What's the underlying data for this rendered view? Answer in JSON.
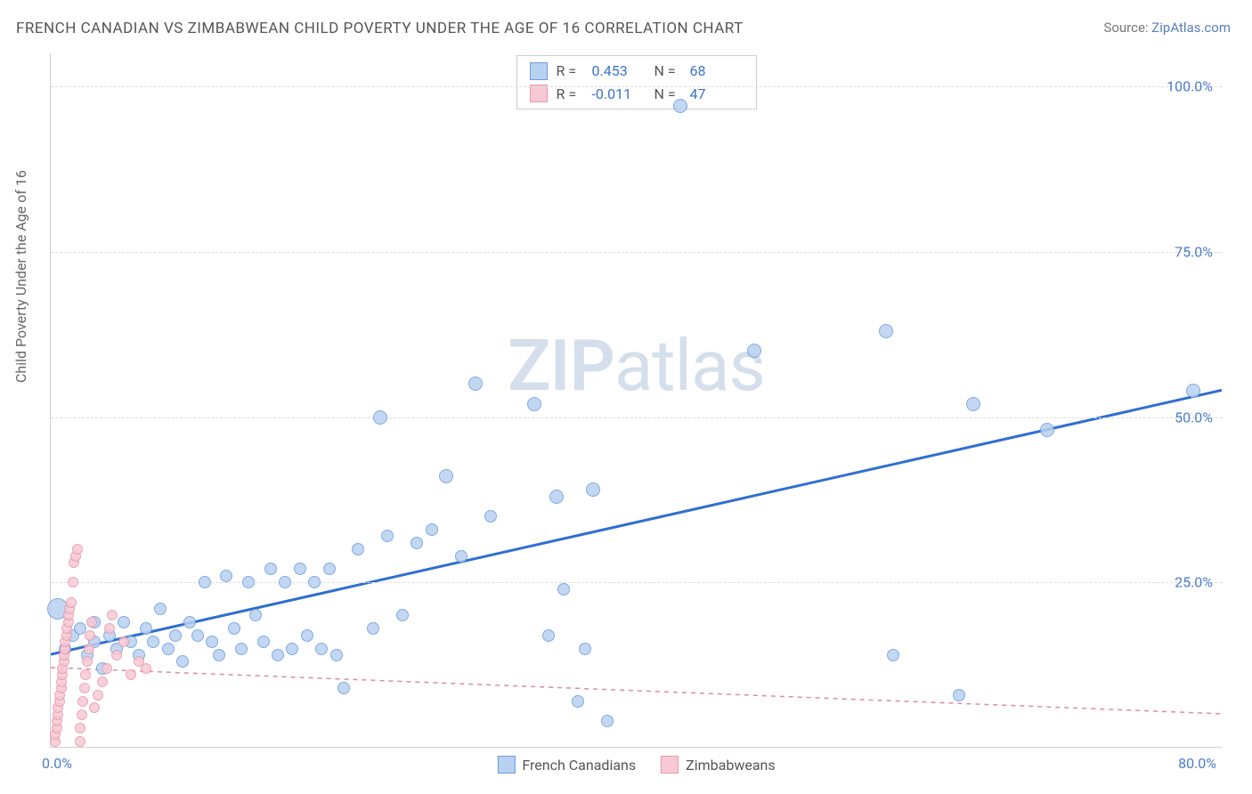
{
  "chart": {
    "title": "FRENCH CANADIAN VS ZIMBABWEAN CHILD POVERTY UNDER THE AGE OF 16 CORRELATION CHART",
    "source_label": "Source:",
    "source_name": "ZipAtlas.com",
    "y_axis_label": "Child Poverty Under the Age of 16",
    "watermark": "ZIPatlas",
    "x_min": 0.0,
    "x_max": 80.0,
    "y_min": 0.0,
    "y_max": 105.0,
    "y_ticks": [
      {
        "value": 25.0,
        "label": "25.0%"
      },
      {
        "value": 50.0,
        "label": "50.0%"
      },
      {
        "value": 75.0,
        "label": "75.0%"
      },
      {
        "value": 100.0,
        "label": "100.0%"
      }
    ],
    "x_tick_left": "0.0%",
    "x_tick_right": "80.0%",
    "grid_color": "#dddddd",
    "axis_color": "#d0d0d0",
    "tick_label_color": "#4a7ccc",
    "background_color": "#ffffff",
    "series": [
      {
        "name": "French Canadians",
        "fill": "#b9d1f0",
        "stroke": "#6a9de0",
        "trend_color": "#2f6fd0",
        "trend_width": 3,
        "trend_dash": "none",
        "R_label": "R =",
        "R_value": "0.453",
        "N_label": "N =",
        "N_value": "68",
        "stat_color": "#3a72c9",
        "trend": {
          "x1": 0,
          "y1": 14.0,
          "x2": 80,
          "y2": 54.0
        },
        "points": [
          {
            "x": 0.5,
            "y": 21,
            "r": 12
          },
          {
            "x": 1.0,
            "y": 15,
            "r": 7
          },
          {
            "x": 1.5,
            "y": 17,
            "r": 7
          },
          {
            "x": 2.0,
            "y": 18,
            "r": 7
          },
          {
            "x": 2.5,
            "y": 14,
            "r": 7
          },
          {
            "x": 3.0,
            "y": 16,
            "r": 7
          },
          {
            "x": 3.0,
            "y": 19,
            "r": 7
          },
          {
            "x": 3.5,
            "y": 12,
            "r": 7
          },
          {
            "x": 4.0,
            "y": 17,
            "r": 7
          },
          {
            "x": 4.5,
            "y": 15,
            "r": 7
          },
          {
            "x": 5.0,
            "y": 19,
            "r": 7
          },
          {
            "x": 5.5,
            "y": 16,
            "r": 7
          },
          {
            "x": 6.0,
            "y": 14,
            "r": 7
          },
          {
            "x": 6.5,
            "y": 18,
            "r": 7
          },
          {
            "x": 7.0,
            "y": 16,
            "r": 7
          },
          {
            "x": 7.5,
            "y": 21,
            "r": 7
          },
          {
            "x": 8.0,
            "y": 15,
            "r": 7
          },
          {
            "x": 8.5,
            "y": 17,
            "r": 7
          },
          {
            "x": 9.0,
            "y": 13,
            "r": 7
          },
          {
            "x": 9.5,
            "y": 19,
            "r": 7
          },
          {
            "x": 10,
            "y": 17,
            "r": 7
          },
          {
            "x": 10.5,
            "y": 25,
            "r": 7
          },
          {
            "x": 11,
            "y": 16,
            "r": 7
          },
          {
            "x": 11.5,
            "y": 14,
            "r": 7
          },
          {
            "x": 12,
            "y": 26,
            "r": 7
          },
          {
            "x": 12.5,
            "y": 18,
            "r": 7
          },
          {
            "x": 13,
            "y": 15,
            "r": 7
          },
          {
            "x": 13.5,
            "y": 25,
            "r": 7
          },
          {
            "x": 14,
            "y": 20,
            "r": 7
          },
          {
            "x": 14.5,
            "y": 16,
            "r": 7
          },
          {
            "x": 15,
            "y": 27,
            "r": 7
          },
          {
            "x": 15.5,
            "y": 14,
            "r": 7
          },
          {
            "x": 16,
            "y": 25,
            "r": 7
          },
          {
            "x": 16.5,
            "y": 15,
            "r": 7
          },
          {
            "x": 17,
            "y": 27,
            "r": 7
          },
          {
            "x": 17.5,
            "y": 17,
            "r": 7
          },
          {
            "x": 18,
            "y": 25,
            "r": 7
          },
          {
            "x": 18.5,
            "y": 15,
            "r": 7
          },
          {
            "x": 19,
            "y": 27,
            "r": 7
          },
          {
            "x": 19.5,
            "y": 14,
            "r": 7
          },
          {
            "x": 20,
            "y": 9,
            "r": 7
          },
          {
            "x": 21,
            "y": 30,
            "r": 7
          },
          {
            "x": 22,
            "y": 18,
            "r": 7
          },
          {
            "x": 22.5,
            "y": 50,
            "r": 8
          },
          {
            "x": 23,
            "y": 32,
            "r": 7
          },
          {
            "x": 24,
            "y": 20,
            "r": 7
          },
          {
            "x": 25,
            "y": 31,
            "r": 7
          },
          {
            "x": 26,
            "y": 33,
            "r": 7
          },
          {
            "x": 27,
            "y": 41,
            "r": 8
          },
          {
            "x": 28,
            "y": 29,
            "r": 7
          },
          {
            "x": 29,
            "y": 55,
            "r": 8
          },
          {
            "x": 30,
            "y": 35,
            "r": 7
          },
          {
            "x": 33,
            "y": 52,
            "r": 8
          },
          {
            "x": 34,
            "y": 17,
            "r": 7
          },
          {
            "x": 34.5,
            "y": 38,
            "r": 8
          },
          {
            "x": 35,
            "y": 24,
            "r": 7
          },
          {
            "x": 36,
            "y": 7,
            "r": 7
          },
          {
            "x": 36.5,
            "y": 15,
            "r": 7
          },
          {
            "x": 37,
            "y": 39,
            "r": 8
          },
          {
            "x": 38,
            "y": 4,
            "r": 7
          },
          {
            "x": 43,
            "y": 97,
            "r": 8
          },
          {
            "x": 48,
            "y": 60,
            "r": 8
          },
          {
            "x": 57,
            "y": 63,
            "r": 8
          },
          {
            "x": 57.5,
            "y": 14,
            "r": 7
          },
          {
            "x": 62,
            "y": 8,
            "r": 7
          },
          {
            "x": 63,
            "y": 52,
            "r": 8
          },
          {
            "x": 68,
            "y": 48,
            "r": 8
          },
          {
            "x": 78,
            "y": 54,
            "r": 8
          }
        ]
      },
      {
        "name": "Zimbabweans",
        "fill": "#f7c9d4",
        "stroke": "#ea98ac",
        "trend_color": "#e08a9e",
        "trend_width": 1.5,
        "trend_dash": "5,5",
        "R_label": "R =",
        "R_value": "-0.011",
        "N_label": "N =",
        "N_value": "47",
        "stat_color": "#3a72c9",
        "trend": {
          "x1": 0,
          "y1": 12.0,
          "x2": 80,
          "y2": 5.0
        },
        "points": [
          {
            "x": 0.3,
            "y": 1,
            "r": 6
          },
          {
            "x": 0.3,
            "y": 2,
            "r": 6
          },
          {
            "x": 0.4,
            "y": 3,
            "r": 6
          },
          {
            "x": 0.4,
            "y": 4,
            "r": 6
          },
          {
            "x": 0.5,
            "y": 5,
            "r": 6
          },
          {
            "x": 0.5,
            "y": 6,
            "r": 6
          },
          {
            "x": 0.6,
            "y": 7,
            "r": 6
          },
          {
            "x": 0.6,
            "y": 8,
            "r": 6
          },
          {
            "x": 0.7,
            "y": 9,
            "r": 6
          },
          {
            "x": 0.7,
            "y": 10,
            "r": 6
          },
          {
            "x": 0.8,
            "y": 11,
            "r": 6
          },
          {
            "x": 0.8,
            "y": 12,
            "r": 6
          },
          {
            "x": 0.9,
            "y": 13,
            "r": 6
          },
          {
            "x": 0.9,
            "y": 14,
            "r": 6
          },
          {
            "x": 1.0,
            "y": 15,
            "r": 6
          },
          {
            "x": 1.0,
            "y": 16,
            "r": 6
          },
          {
            "x": 1.1,
            "y": 17,
            "r": 6
          },
          {
            "x": 1.1,
            "y": 18,
            "r": 6
          },
          {
            "x": 1.2,
            "y": 19,
            "r": 6
          },
          {
            "x": 1.2,
            "y": 20,
            "r": 6
          },
          {
            "x": 1.3,
            "y": 21,
            "r": 6
          },
          {
            "x": 1.4,
            "y": 22,
            "r": 6
          },
          {
            "x": 1.5,
            "y": 25,
            "r": 6
          },
          {
            "x": 1.6,
            "y": 28,
            "r": 6
          },
          {
            "x": 1.7,
            "y": 29,
            "r": 6
          },
          {
            "x": 1.8,
            "y": 30,
            "r": 6
          },
          {
            "x": 2.0,
            "y": 1,
            "r": 6
          },
          {
            "x": 2.0,
            "y": 3,
            "r": 6
          },
          {
            "x": 2.1,
            "y": 5,
            "r": 6
          },
          {
            "x": 2.2,
            "y": 7,
            "r": 6
          },
          {
            "x": 2.3,
            "y": 9,
            "r": 6
          },
          {
            "x": 2.4,
            "y": 11,
            "r": 6
          },
          {
            "x": 2.5,
            "y": 13,
            "r": 6
          },
          {
            "x": 2.6,
            "y": 15,
            "r": 6
          },
          {
            "x": 2.7,
            "y": 17,
            "r": 6
          },
          {
            "x": 2.8,
            "y": 19,
            "r": 6
          },
          {
            "x": 3.0,
            "y": 6,
            "r": 6
          },
          {
            "x": 3.2,
            "y": 8,
            "r": 6
          },
          {
            "x": 3.5,
            "y": 10,
            "r": 6
          },
          {
            "x": 3.8,
            "y": 12,
            "r": 6
          },
          {
            "x": 4.0,
            "y": 18,
            "r": 6
          },
          {
            "x": 4.2,
            "y": 20,
            "r": 6
          },
          {
            "x": 4.5,
            "y": 14,
            "r": 6
          },
          {
            "x": 5.0,
            "y": 16,
            "r": 6
          },
          {
            "x": 5.5,
            "y": 11,
            "r": 6
          },
          {
            "x": 6.0,
            "y": 13,
            "r": 6
          },
          {
            "x": 6.5,
            "y": 12,
            "r": 6
          }
        ]
      }
    ],
    "bottom_legend": [
      {
        "label": "French Canadians",
        "fill": "#b9d1f0",
        "stroke": "#6a9de0"
      },
      {
        "label": "Zimbabweans",
        "fill": "#f7c9d4",
        "stroke": "#ea98ac"
      }
    ]
  }
}
